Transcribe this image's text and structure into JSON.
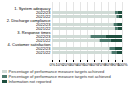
{
  "chart_data": {
    "type": "bar",
    "orientation": "horizontal",
    "stacked": true,
    "categories": [
      "1. System adequacy",
      "2. Discharge compliance",
      "3. Response times",
      "4. Customer satisfaction"
    ],
    "subcategories": [
      "2022/23",
      "2021/22"
    ],
    "series": [
      {
        "name": "Percentage of performance measure targets achieved",
        "color": "#d0dbd6",
        "values": [
          [
            90,
            92
          ],
          [
            88,
            90
          ],
          [
            55,
            68
          ],
          [
            82,
            85
          ]
        ]
      },
      {
        "name": "Percentage of performance measure targets not achieved",
        "color": "#4d7a6e",
        "values": [
          [
            4,
            3
          ],
          [
            5,
            4
          ],
          [
            22,
            16
          ],
          [
            8,
            7
          ]
        ]
      },
      {
        "name": "Information not reported",
        "color": "#1f4f3f",
        "values": [
          [
            6,
            5
          ],
          [
            7,
            6
          ],
          [
            23,
            16
          ],
          [
            10,
            8
          ]
        ]
      }
    ],
    "xlim": [
      0,
      100
    ],
    "xticks": [
      {
        "value": 0,
        "label": "0%"
      },
      {
        "value": 10,
        "label": "10%"
      },
      {
        "value": 20,
        "label": "20%"
      },
      {
        "value": 30,
        "label": "30%"
      },
      {
        "value": 40,
        "label": "40%"
      },
      {
        "value": 50,
        "label": "50%"
      },
      {
        "value": 60,
        "label": "60%"
      },
      {
        "value": 70,
        "label": "70%"
      },
      {
        "value": 80,
        "label": "80%"
      },
      {
        "value": 90,
        "label": "90%"
      },
      {
        "value": 100,
        "label": "100%"
      }
    ],
    "grid": true,
    "legend": "bottom"
  }
}
